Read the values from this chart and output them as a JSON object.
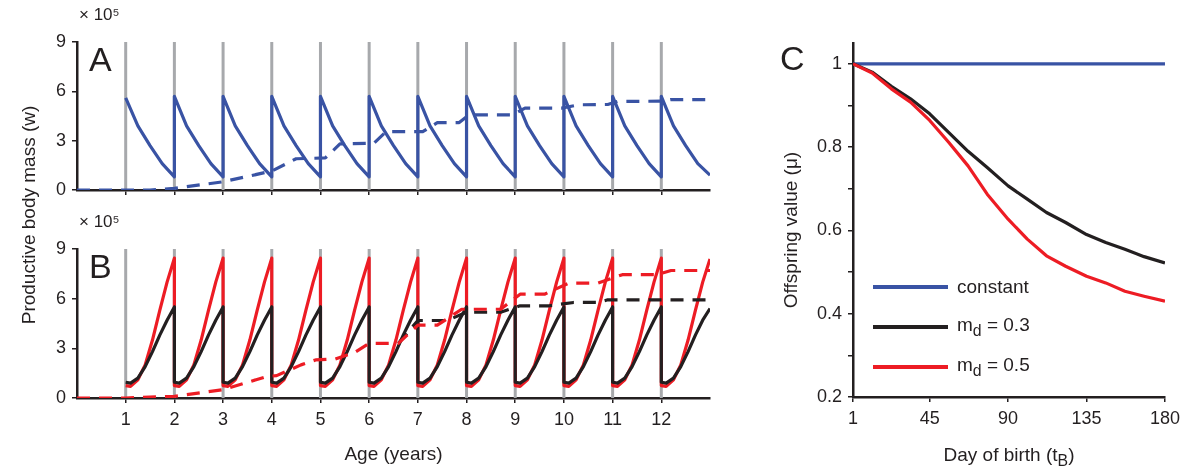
{
  "chart_data": [
    {
      "type": "line",
      "ylabel": "Productive body mass (w)",
      "annotations": [
        "× 10⁵",
        "A"
      ],
      "xlim": [
        0,
        13
      ],
      "xticks": [
        1,
        2,
        3,
        4,
        5,
        6,
        7,
        8,
        9,
        10,
        11,
        12
      ],
      "ylim": [
        0,
        9
      ],
      "yticks": [
        0,
        3,
        6,
        9
      ],
      "tick_labels": "y",
      "marker": "none",
      "ref_lines": [
        {
          "axis": "x",
          "value": 1,
          "color": "#a7a9ac"
        },
        {
          "axis": "x",
          "value": 2,
          "color": "#a7a9ac"
        },
        {
          "axis": "x",
          "value": 3,
          "color": "#a7a9ac"
        },
        {
          "axis": "x",
          "value": 4,
          "color": "#a7a9ac"
        },
        {
          "axis": "x",
          "value": 5,
          "color": "#a7a9ac"
        },
        {
          "axis": "x",
          "value": 6,
          "color": "#a7a9ac"
        },
        {
          "axis": "x",
          "value": 7,
          "color": "#a7a9ac"
        },
        {
          "axis": "x",
          "value": 8,
          "color": "#a7a9ac"
        },
        {
          "axis": "x",
          "value": 9,
          "color": "#a7a9ac"
        },
        {
          "axis": "x",
          "value": 10,
          "color": "#a7a9ac"
        },
        {
          "axis": "x",
          "value": 11,
          "color": "#a7a9ac"
        },
        {
          "axis": "x",
          "value": 12,
          "color": "#a7a9ac"
        }
      ],
      "series": [
        {
          "color": "#3953a4",
          "line_style": "solid",
          "x": [
            1,
            1.25,
            1.5,
            1.75,
            2,
            2,
            2.25,
            2.5,
            2.75,
            3,
            3,
            3.25,
            3.5,
            3.75,
            4,
            4,
            4.25,
            4.5,
            4.75,
            5,
            5,
            5.25,
            5.5,
            5.75,
            6,
            6,
            6.25,
            6.5,
            6.75,
            7,
            7,
            7.25,
            7.5,
            7.75,
            8,
            8,
            8.25,
            8.5,
            8.75,
            9,
            9,
            9.25,
            9.5,
            9.75,
            10,
            10,
            10.25,
            10.5,
            10.75,
            11,
            11,
            11.25,
            11.5,
            11.75,
            12,
            12,
            12.25,
            12.5,
            12.75,
            13
          ],
          "values": [
            5.6,
            3.9,
            2.7,
            1.6,
            0.8,
            5.7,
            3.9,
            2.7,
            1.6,
            0.8,
            5.7,
            3.9,
            2.7,
            1.6,
            0.8,
            5.7,
            3.9,
            2.7,
            1.6,
            0.8,
            5.7,
            3.9,
            2.7,
            1.6,
            0.8,
            5.7,
            3.9,
            2.7,
            1.6,
            0.8,
            5.7,
            3.9,
            2.7,
            1.6,
            0.8,
            5.7,
            3.9,
            2.7,
            1.6,
            0.8,
            5.7,
            3.9,
            2.7,
            1.6,
            0.8,
            5.7,
            3.9,
            2.7,
            1.6,
            0.8,
            5.7,
            3.9,
            2.7,
            1.6,
            0.8,
            5.7,
            3.9,
            2.7,
            1.6,
            0.9
          ]
        },
        {
          "color": "#3953a4",
          "line_style": "dashed",
          "x": [
            0,
            1.5,
            2,
            3,
            4,
            4.5,
            5.1,
            5.4,
            6.1,
            6.35,
            7.1,
            7.4,
            7.85,
            8.05,
            8.95,
            9.2,
            9.95,
            10.3,
            10.9,
            11.1,
            12,
            12.2,
            13
          ],
          "values": [
            0,
            0,
            0.1,
            0.5,
            1.15,
            1.9,
            1.95,
            2.8,
            2.85,
            3.55,
            3.55,
            4.1,
            4.1,
            4.57,
            4.57,
            4.98,
            4.98,
            5.18,
            5.2,
            5.39,
            5.4,
            5.5,
            5.5
          ]
        }
      ]
    },
    {
      "type": "line",
      "xlabel": "Age (years)",
      "annotations": [
        "× 10⁵",
        "B"
      ],
      "xlim": [
        0,
        13
      ],
      "xticks": [
        1,
        2,
        3,
        4,
        5,
        6,
        7,
        8,
        9,
        10,
        11,
        12
      ],
      "ylim": [
        0,
        9
      ],
      "yticks": [
        0,
        3,
        6,
        9
      ],
      "marker": "none",
      "ref_lines": [
        {
          "axis": "x",
          "value": 1,
          "color": "#a7a9ac"
        },
        {
          "axis": "x",
          "value": 2,
          "color": "#a7a9ac"
        },
        {
          "axis": "x",
          "value": 3,
          "color": "#a7a9ac"
        },
        {
          "axis": "x",
          "value": 4,
          "color": "#a7a9ac"
        },
        {
          "axis": "x",
          "value": 5,
          "color": "#a7a9ac"
        },
        {
          "axis": "x",
          "value": 6,
          "color": "#a7a9ac"
        },
        {
          "axis": "x",
          "value": 7,
          "color": "#a7a9ac"
        },
        {
          "axis": "x",
          "value": 8,
          "color": "#a7a9ac"
        },
        {
          "axis": "x",
          "value": 9,
          "color": "#a7a9ac"
        },
        {
          "axis": "x",
          "value": 10,
          "color": "#a7a9ac"
        },
        {
          "axis": "x",
          "value": 11,
          "color": "#a7a9ac"
        },
        {
          "axis": "x",
          "value": 12,
          "color": "#a7a9ac"
        }
      ],
      "series": [
        {
          "color": "#ed1c24",
          "line_style": "solid",
          "x": [
            1,
            1.1,
            1.25,
            1.4,
            1.55,
            1.7,
            1.85,
            2,
            2,
            2.1,
            2.25,
            2.4,
            2.55,
            2.7,
            2.85,
            3,
            3,
            3.1,
            3.25,
            3.4,
            3.55,
            3.7,
            3.85,
            4,
            4,
            4.1,
            4.25,
            4.4,
            4.55,
            4.7,
            4.85,
            5,
            5,
            5.1,
            5.25,
            5.4,
            5.55,
            5.7,
            5.85,
            6,
            6,
            6.1,
            6.25,
            6.4,
            6.55,
            6.7,
            6.85,
            7,
            7,
            7.1,
            7.25,
            7.4,
            7.55,
            7.7,
            7.85,
            8,
            8,
            8.1,
            8.25,
            8.4,
            8.55,
            8.7,
            8.85,
            9,
            9,
            9.1,
            9.25,
            9.4,
            9.55,
            9.7,
            9.85,
            10,
            10,
            10.1,
            10.25,
            10.4,
            10.55,
            10.7,
            10.85,
            11,
            11,
            11.1,
            11.25,
            11.4,
            11.55,
            11.7,
            11.85,
            12,
            12,
            12.1,
            12.25,
            12.4,
            12.55,
            12.7,
            12.85,
            13
          ],
          "values": [
            0.75,
            0.7,
            1.1,
            2.0,
            3.5,
            5.3,
            7.0,
            8.45,
            0.75,
            0.7,
            1.1,
            2.0,
            3.5,
            5.3,
            7.0,
            8.45,
            0.75,
            0.7,
            1.1,
            2.0,
            3.5,
            5.3,
            7.0,
            8.45,
            0.75,
            0.7,
            1.1,
            2.0,
            3.5,
            5.3,
            7.0,
            8.45,
            0.75,
            0.7,
            1.1,
            2.0,
            3.5,
            5.3,
            7.0,
            8.45,
            0.75,
            0.7,
            1.1,
            2.0,
            3.5,
            5.3,
            7.0,
            8.45,
            0.75,
            0.7,
            1.1,
            2.0,
            3.5,
            5.3,
            7.0,
            8.45,
            0.75,
            0.7,
            1.1,
            2.0,
            3.5,
            5.3,
            7.0,
            8.45,
            0.75,
            0.7,
            1.1,
            2.0,
            3.5,
            5.3,
            7.0,
            8.45,
            0.75,
            0.7,
            1.1,
            2.0,
            3.5,
            5.3,
            7.0,
            8.45,
            0.75,
            0.7,
            1.1,
            2.0,
            3.5,
            5.3,
            7.0,
            8.45,
            0.75,
            0.7,
            1.1,
            2.0,
            3.5,
            5.3,
            7.0,
            8.4
          ]
        },
        {
          "color": "#231f20",
          "line_style": "solid",
          "x": [
            1,
            1.1,
            1.25,
            1.4,
            1.55,
            1.7,
            1.85,
            2,
            2,
            2.1,
            2.25,
            2.4,
            2.55,
            2.7,
            2.85,
            3,
            3,
            3.1,
            3.25,
            3.4,
            3.55,
            3.7,
            3.85,
            4,
            4,
            4.1,
            4.25,
            4.4,
            4.55,
            4.7,
            4.85,
            5,
            5,
            5.1,
            5.25,
            5.4,
            5.55,
            5.7,
            5.85,
            6,
            6,
            6.1,
            6.25,
            6.4,
            6.55,
            6.7,
            6.85,
            7,
            7,
            7.1,
            7.25,
            7.4,
            7.55,
            7.7,
            7.85,
            8,
            8,
            8.1,
            8.25,
            8.4,
            8.55,
            8.7,
            8.85,
            9,
            9,
            9.1,
            9.25,
            9.4,
            9.55,
            9.7,
            9.85,
            10,
            10,
            10.1,
            10.25,
            10.4,
            10.55,
            10.7,
            10.85,
            11,
            11,
            11.1,
            11.25,
            11.4,
            11.55,
            11.7,
            11.85,
            12,
            12,
            12.1,
            12.25,
            12.4,
            12.55,
            12.7,
            12.85,
            13
          ],
          "values": [
            0.95,
            0.9,
            1.2,
            1.9,
            2.8,
            3.8,
            4.7,
            5.5,
            0.95,
            0.9,
            1.2,
            1.9,
            2.8,
            3.8,
            4.7,
            5.5,
            0.95,
            0.9,
            1.2,
            1.9,
            2.8,
            3.8,
            4.7,
            5.5,
            0.95,
            0.9,
            1.2,
            1.9,
            2.8,
            3.8,
            4.7,
            5.5,
            0.95,
            0.9,
            1.2,
            1.9,
            2.8,
            3.8,
            4.7,
            5.5,
            0.95,
            0.9,
            1.2,
            1.9,
            2.8,
            3.8,
            4.7,
            5.5,
            0.95,
            0.9,
            1.2,
            1.9,
            2.8,
            3.8,
            4.7,
            5.5,
            0.95,
            0.9,
            1.2,
            1.9,
            2.8,
            3.8,
            4.7,
            5.5,
            0.95,
            0.9,
            1.2,
            1.9,
            2.8,
            3.8,
            4.7,
            5.5,
            0.95,
            0.9,
            1.2,
            1.9,
            2.8,
            3.8,
            4.7,
            5.5,
            0.95,
            0.9,
            1.2,
            1.9,
            2.8,
            3.8,
            4.7,
            5.5,
            0.95,
            0.9,
            1.2,
            1.9,
            2.8,
            3.8,
            4.7,
            5.4
          ]
        },
        {
          "color": "#231f20",
          "line_style": "dashed",
          "x": [
            6.6,
            7.0,
            7.6,
            8.0,
            8.7,
            9.1,
            9.7,
            10.2,
            10.7,
            10.9,
            13
          ],
          "values": [
            3.3,
            4.68,
            4.68,
            5.18,
            5.18,
            5.57,
            5.57,
            5.77,
            5.77,
            5.93,
            5.93
          ]
        },
        {
          "color": "#ed1c24",
          "line_style": "dashed",
          "x": [
            0,
            1,
            2,
            3,
            3.9,
            4.1,
            4.6,
            4.9,
            5.3,
            5.7,
            6.0,
            6.6,
            7.0,
            7.4,
            7.9,
            8.7,
            9.1,
            9.6,
            10.1,
            10.7,
            11.2,
            11.9,
            12.2,
            13
          ],
          "values": [
            0,
            0,
            0.1,
            0.5,
            1.3,
            1.35,
            2.0,
            2.3,
            2.35,
            2.75,
            3.3,
            3.3,
            4.4,
            4.4,
            5.36,
            5.36,
            6.27,
            6.27,
            6.94,
            6.94,
            7.45,
            7.45,
            7.7,
            7.7
          ]
        }
      ]
    },
    {
      "type": "line",
      "xlabel": "Day of birth  (t$_{B}$)",
      "ylabel": "Offspring value (μ)",
      "annotations": [
        "C"
      ],
      "xlim": [
        1,
        180
      ],
      "xticks": [
        1,
        45,
        90,
        135,
        180
      ],
      "ylim": [
        0.2,
        1.05
      ],
      "yticks": [
        0.2,
        {
          "value": 0.3,
          "label": null
        },
        0.4,
        {
          "value": 0.5,
          "label": null
        },
        0.6,
        {
          "value": 0.7,
          "label": null
        },
        0.8,
        {
          "value": 0.9,
          "label": null
        },
        1
      ],
      "marker": "none",
      "legend": "bottom left",
      "series": [
        {
          "name": "constant",
          "color": "#3953a4",
          "line_style": "solid",
          "x": [
            1,
            180
          ],
          "values": [
            1,
            1
          ]
        },
        {
          "name": "m$_{d}$ = 0.3",
          "color": "#231f20",
          "line_style": "solid",
          "x": [
            1,
            12,
            23,
            34,
            45,
            56,
            67,
            78,
            90,
            101,
            112,
            123,
            135,
            146,
            157,
            168,
            180
          ],
          "values": [
            1,
            0.98,
            0.946,
            0.916,
            0.88,
            0.835,
            0.79,
            0.751,
            0.707,
            0.675,
            0.643,
            0.619,
            0.59,
            0.571,
            0.555,
            0.537,
            0.522
          ]
        },
        {
          "name": "m$_{d}$ = 0.5",
          "color": "#ed1c24",
          "line_style": "solid",
          "x": [
            1,
            12,
            23,
            34,
            45,
            56,
            67,
            78,
            90,
            101,
            112,
            123,
            135,
            146,
            157,
            168,
            180
          ],
          "values": [
            1,
            0.978,
            0.94,
            0.908,
            0.864,
            0.811,
            0.755,
            0.687,
            0.627,
            0.579,
            0.539,
            0.514,
            0.49,
            0.474,
            0.454,
            0.442,
            0.43
          ]
        }
      ]
    }
  ]
}
